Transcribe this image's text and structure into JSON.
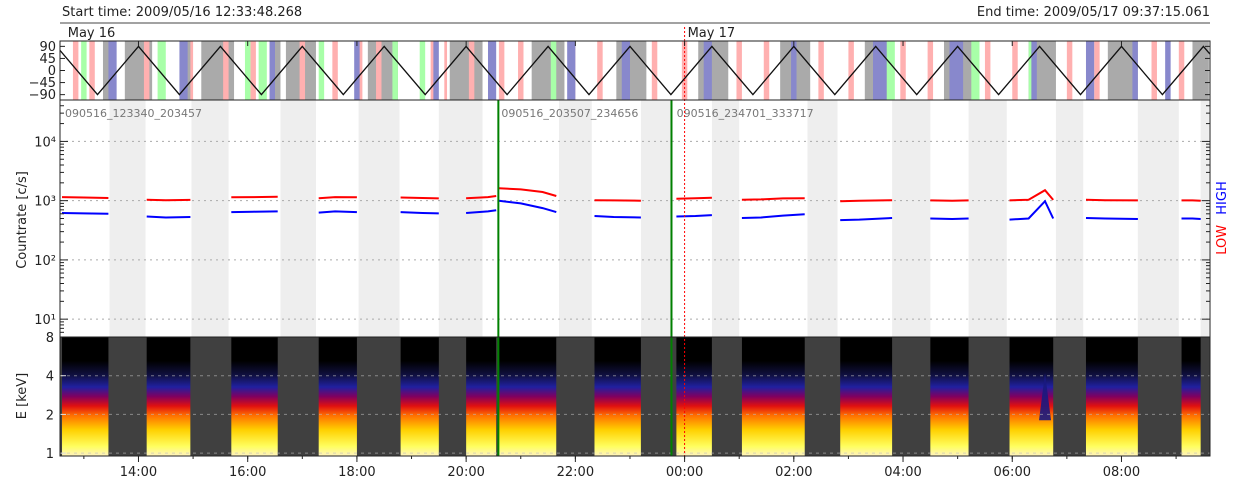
{
  "header": {
    "start_time": "Start time: 2009/05/16 12:33:48.268",
    "end_time": "End time: 2009/05/17 09:37:15.061"
  },
  "colors": {
    "low": "#ff0000",
    "high": "#0000ff",
    "file_boundary": "#008000",
    "midnight": "#ff0000",
    "saa": "#aaaaaa",
    "day_shade": "#ffb0b0",
    "night_shade": "#8888cc",
    "green_shade": "#a8ffa8",
    "gap_shade": "#eeeeee",
    "spectrogram_bg": "#404040"
  },
  "chart_data": [
    {
      "type": "line",
      "panel": "orbit",
      "x_unit": "hours since 2009/05/16 00:00",
      "xlim": [
        12.563,
        33.621
      ],
      "ylim": [
        -110,
        110
      ],
      "yticks": [
        90,
        45,
        0,
        -45,
        -90
      ],
      "ytick_labels": [
        "90",
        "45",
        "0",
        "−45",
        "−90"
      ],
      "date_labels": [
        {
          "x": 12.65,
          "text": "May 16"
        },
        {
          "x": 24.0,
          "text": "May 17"
        }
      ],
      "orbit_period_h": 1.5,
      "orbit_extremes": [
        {
          "x": 12.5,
          "y": 90
        },
        {
          "x": 13.25,
          "y": -90
        },
        {
          "x": 14.0,
          "y": 90
        },
        {
          "x": 14.75,
          "y": -90
        },
        {
          "x": 15.5,
          "y": 90
        },
        {
          "x": 16.25,
          "y": -90
        },
        {
          "x": 17.0,
          "y": 90
        },
        {
          "x": 17.75,
          "y": -90
        },
        {
          "x": 18.5,
          "y": 90
        },
        {
          "x": 19.25,
          "y": -90
        },
        {
          "x": 20.0,
          "y": 90
        },
        {
          "x": 20.75,
          "y": -90
        },
        {
          "x": 21.5,
          "y": 90
        },
        {
          "x": 22.25,
          "y": -90
        },
        {
          "x": 23.0,
          "y": 90
        },
        {
          "x": 23.75,
          "y": -90
        },
        {
          "x": 24.5,
          "y": 90
        },
        {
          "x": 25.25,
          "y": -90
        },
        {
          "x": 26.0,
          "y": 90
        },
        {
          "x": 26.75,
          "y": -90
        },
        {
          "x": 27.5,
          "y": 90
        },
        {
          "x": 28.25,
          "y": -90
        },
        {
          "x": 29.0,
          "y": 90
        },
        {
          "x": 29.75,
          "y": -90
        },
        {
          "x": 30.5,
          "y": 90
        },
        {
          "x": 31.25,
          "y": -90
        },
        {
          "x": 32.0,
          "y": 90
        },
        {
          "x": 32.75,
          "y": -90
        },
        {
          "x": 33.5,
          "y": 90
        },
        {
          "x": 34.25,
          "y": -90
        }
      ],
      "saa_intervals": [
        [
          13.35,
          13.55
        ],
        [
          13.75,
          14.25
        ],
        [
          14.8,
          14.98
        ],
        [
          15.15,
          15.75
        ],
        [
          16.5,
          16.6
        ],
        [
          16.7,
          17.25
        ],
        [
          18.2,
          18.75
        ],
        [
          19.7,
          20.3
        ],
        [
          21.2,
          21.8
        ],
        [
          22.75,
          23.3
        ],
        [
          24.25,
          24.8
        ],
        [
          25.75,
          26.3
        ],
        [
          27.3,
          27.8
        ],
        [
          28.75,
          29.3
        ],
        [
          30.3,
          30.8
        ],
        [
          31.75,
          32.3
        ],
        [
          33.3,
          33.6
        ]
      ],
      "pink_intervals": [
        [
          12.8,
          12.9
        ],
        [
          13.1,
          13.2
        ],
        [
          14.1,
          14.2
        ],
        [
          14.95,
          15.0
        ],
        [
          15.55,
          15.65
        ],
        [
          16.05,
          16.15
        ],
        [
          16.95,
          17.05
        ],
        [
          17.55,
          17.65
        ],
        [
          18.0,
          18.1
        ],
        [
          18.35,
          18.45
        ],
        [
          19.35,
          19.45
        ],
        [
          19.6,
          19.65
        ],
        [
          20.05,
          20.15
        ],
        [
          20.6,
          20.7
        ],
        [
          20.95,
          21.05
        ],
        [
          21.9,
          22.0
        ],
        [
          22.4,
          22.5
        ],
        [
          23.4,
          23.5
        ],
        [
          23.95,
          24.05
        ],
        [
          24.95,
          25.05
        ],
        [
          25.45,
          25.55
        ],
        [
          26.45,
          26.55
        ],
        [
          27.0,
          27.1
        ],
        [
          27.95,
          28.05
        ],
        [
          28.45,
          28.55
        ],
        [
          29.5,
          29.6
        ],
        [
          30.0,
          30.1
        ],
        [
          31.0,
          31.1
        ],
        [
          31.5,
          31.6
        ],
        [
          32.55,
          32.65
        ],
        [
          33.05,
          33.15
        ]
      ],
      "blue_intervals": [
        [
          13.45,
          13.6
        ],
        [
          14.75,
          14.9
        ],
        [
          16.4,
          16.5
        ],
        [
          17.95,
          18.05
        ],
        [
          19.4,
          19.5
        ],
        [
          20.4,
          20.55
        ],
        [
          21.85,
          22.0
        ],
        [
          22.85,
          23.0
        ],
        [
          24.35,
          24.5
        ],
        [
          25.95,
          26.05
        ],
        [
          27.45,
          27.7
        ],
        [
          28.85,
          29.1
        ],
        [
          30.35,
          30.45
        ],
        [
          31.35,
          31.5
        ],
        [
          32.2,
          32.3
        ],
        [
          32.8,
          32.9
        ]
      ],
      "green_intervals": [
        [
          12.95,
          13.05
        ],
        [
          14.35,
          14.5
        ],
        [
          15.95,
          16.05
        ],
        [
          16.2,
          16.35
        ],
        [
          17.3,
          17.4
        ],
        [
          18.65,
          18.75
        ],
        [
          19.15,
          19.25
        ],
        [
          21.55,
          21.65
        ],
        [
          27.7,
          27.85
        ],
        [
          29.25,
          29.4
        ],
        [
          30.3,
          30.4
        ]
      ]
    },
    {
      "type": "scatter",
      "panel": "countrate",
      "ylabel": "Countrate [c/s]",
      "yscale": "log",
      "ylim": [
        5,
        50000
      ],
      "yticks": [
        10,
        100,
        1000,
        10000
      ],
      "ytick_labels": [
        "10¹",
        "10²",
        "10³",
        "10⁴"
      ],
      "right_label_low": "LOW",
      "right_label_high": "HIGH",
      "file_labels": [
        {
          "x": 12.6,
          "text": "090516_123340_203457"
        },
        {
          "x": 20.59,
          "text": "090516_203507_234656"
        },
        {
          "x": 23.8,
          "text": "090516_234701_333717"
        }
      ],
      "file_boundaries": [
        20.59,
        23.76
      ],
      "midnight_line": 24.0,
      "gap_intervals": [
        [
          13.47,
          14.13
        ],
        [
          14.97,
          15.65
        ],
        [
          16.6,
          17.25
        ],
        [
          18.03,
          18.78
        ],
        [
          19.5,
          20.3
        ],
        [
          21.7,
          22.3
        ],
        [
          23.2,
          23.78
        ],
        [
          24.5,
          25.0
        ],
        [
          26.25,
          26.8
        ],
        [
          27.8,
          28.5
        ],
        [
          29.2,
          29.9
        ],
        [
          30.8,
          31.3
        ],
        [
          32.3,
          33.05
        ],
        [
          33.45,
          33.6
        ]
      ],
      "series": [
        {
          "name": "LOW",
          "color": "#ff0000",
          "segments": [
            {
              "x": [
                12.6,
                13.0,
                13.45
              ],
              "y": [
                1150,
                1130,
                1110
              ]
            },
            {
              "x": [
                14.15,
                14.5,
                14.95
              ],
              "y": [
                1040,
                1020,
                1030
              ]
            },
            {
              "x": [
                15.7,
                16.1,
                16.55
              ],
              "y": [
                1140,
                1150,
                1160
              ]
            },
            {
              "x": [
                17.3,
                17.6,
                18.0
              ],
              "y": [
                1100,
                1150,
                1140
              ]
            },
            {
              "x": [
                18.8,
                19.2,
                19.5
              ],
              "y": [
                1130,
                1110,
                1090
              ]
            },
            {
              "x": [
                20.0,
                20.4,
                20.55
              ],
              "y": [
                1100,
                1150,
                1200
              ]
            },
            {
              "x": [
                20.6,
                21.0,
                21.4,
                21.65
              ],
              "y": [
                1620,
                1550,
                1400,
                1200
              ]
            },
            {
              "x": [
                22.35,
                22.7,
                23.2
              ],
              "y": [
                1020,
                1010,
                1000
              ]
            },
            {
              "x": [
                23.85,
                24.2,
                24.5
              ],
              "y": [
                1080,
                1100,
                1120
              ]
            },
            {
              "x": [
                25.05,
                25.4,
                25.8,
                26.2
              ],
              "y": [
                1040,
                1050,
                1090,
                1100
              ]
            },
            {
              "x": [
                26.85,
                27.2,
                27.8
              ],
              "y": [
                980,
                1000,
                1020
              ]
            },
            {
              "x": [
                28.5,
                28.9,
                29.2
              ],
              "y": [
                1010,
                1000,
                1010
              ]
            },
            {
              "x": [
                29.95,
                30.3,
                30.6,
                30.75
              ],
              "y": [
                1010,
                1040,
                1500,
                1030
              ]
            },
            {
              "x": [
                31.35,
                31.7,
                32.3
              ],
              "y": [
                1040,
                1020,
                1010
              ]
            },
            {
              "x": [
                33.1,
                33.3,
                33.45
              ],
              "y": [
                1010,
                1010,
                1000
              ]
            }
          ]
        },
        {
          "name": "HIGH",
          "color": "#0000ff",
          "segments": [
            {
              "x": [
                12.6,
                13.0,
                13.45
              ],
              "y": [
                620,
                610,
                600
              ]
            },
            {
              "x": [
                14.15,
                14.5,
                14.95
              ],
              "y": [
                540,
                520,
                530
              ]
            },
            {
              "x": [
                15.7,
                16.1,
                16.55
              ],
              "y": [
                640,
                650,
                660
              ]
            },
            {
              "x": [
                17.3,
                17.6,
                18.0
              ],
              "y": [
                630,
                660,
                640
              ]
            },
            {
              "x": [
                18.8,
                19.2,
                19.5
              ],
              "y": [
                640,
                620,
                610
              ]
            },
            {
              "x": [
                20.0,
                20.4,
                20.55
              ],
              "y": [
                620,
                660,
                690
              ]
            },
            {
              "x": [
                20.6,
                21.0,
                21.4,
                21.65
              ],
              "y": [
                1000,
                900,
                750,
                640
              ]
            },
            {
              "x": [
                22.35,
                22.7,
                23.2
              ],
              "y": [
                550,
                530,
                520
              ]
            },
            {
              "x": [
                23.85,
                24.2,
                24.5
              ],
              "y": [
                540,
                550,
                570
              ]
            },
            {
              "x": [
                25.05,
                25.4,
                25.8,
                26.2
              ],
              "y": [
                510,
                520,
                560,
                590
              ]
            },
            {
              "x": [
                26.85,
                27.2,
                27.8
              ],
              "y": [
                470,
                480,
                510
              ]
            },
            {
              "x": [
                28.5,
                28.9,
                29.2
              ],
              "y": [
                500,
                490,
                500
              ]
            },
            {
              "x": [
                29.95,
                30.3,
                30.6,
                30.75
              ],
              "y": [
                480,
                500,
                980,
                500
              ]
            },
            {
              "x": [
                31.35,
                31.7,
                32.3
              ],
              "y": [
                510,
                500,
                490
              ]
            },
            {
              "x": [
                33.1,
                33.3,
                33.45
              ],
              "y": [
                500,
                500,
                490
              ]
            }
          ]
        }
      ]
    },
    {
      "type": "heatmap",
      "panel": "spectrogram",
      "ylabel": "E [keV]",
      "yscale": "log",
      "ylim": [
        0.95,
        8
      ],
      "yticks": [
        1,
        2,
        4,
        8
      ],
      "ytick_labels": [
        "1",
        "2",
        "4",
        "8"
      ],
      "xticks": [
        14,
        16,
        18,
        20,
        22,
        24,
        26,
        28,
        30,
        32
      ],
      "xtick_labels": [
        "14:00",
        "16:00",
        "18:00",
        "20:00",
        "22:00",
        "00:00",
        "02:00",
        "04:00",
        "06:00",
        "08:00"
      ],
      "data_intervals": [
        [
          12.6,
          13.45
        ],
        [
          14.15,
          14.95
        ],
        [
          15.7,
          16.55
        ],
        [
          17.3,
          18.0
        ],
        [
          18.8,
          19.5
        ],
        [
          20.0,
          20.55
        ],
        [
          20.6,
          21.65
        ],
        [
          22.35,
          23.2
        ],
        [
          23.85,
          24.5
        ],
        [
          25.05,
          26.2
        ],
        [
          26.85,
          27.8
        ],
        [
          28.5,
          29.2
        ],
        [
          29.95,
          30.75
        ],
        [
          31.35,
          32.3
        ],
        [
          33.1,
          33.45
        ]
      ],
      "spike_x": 30.6
    }
  ]
}
